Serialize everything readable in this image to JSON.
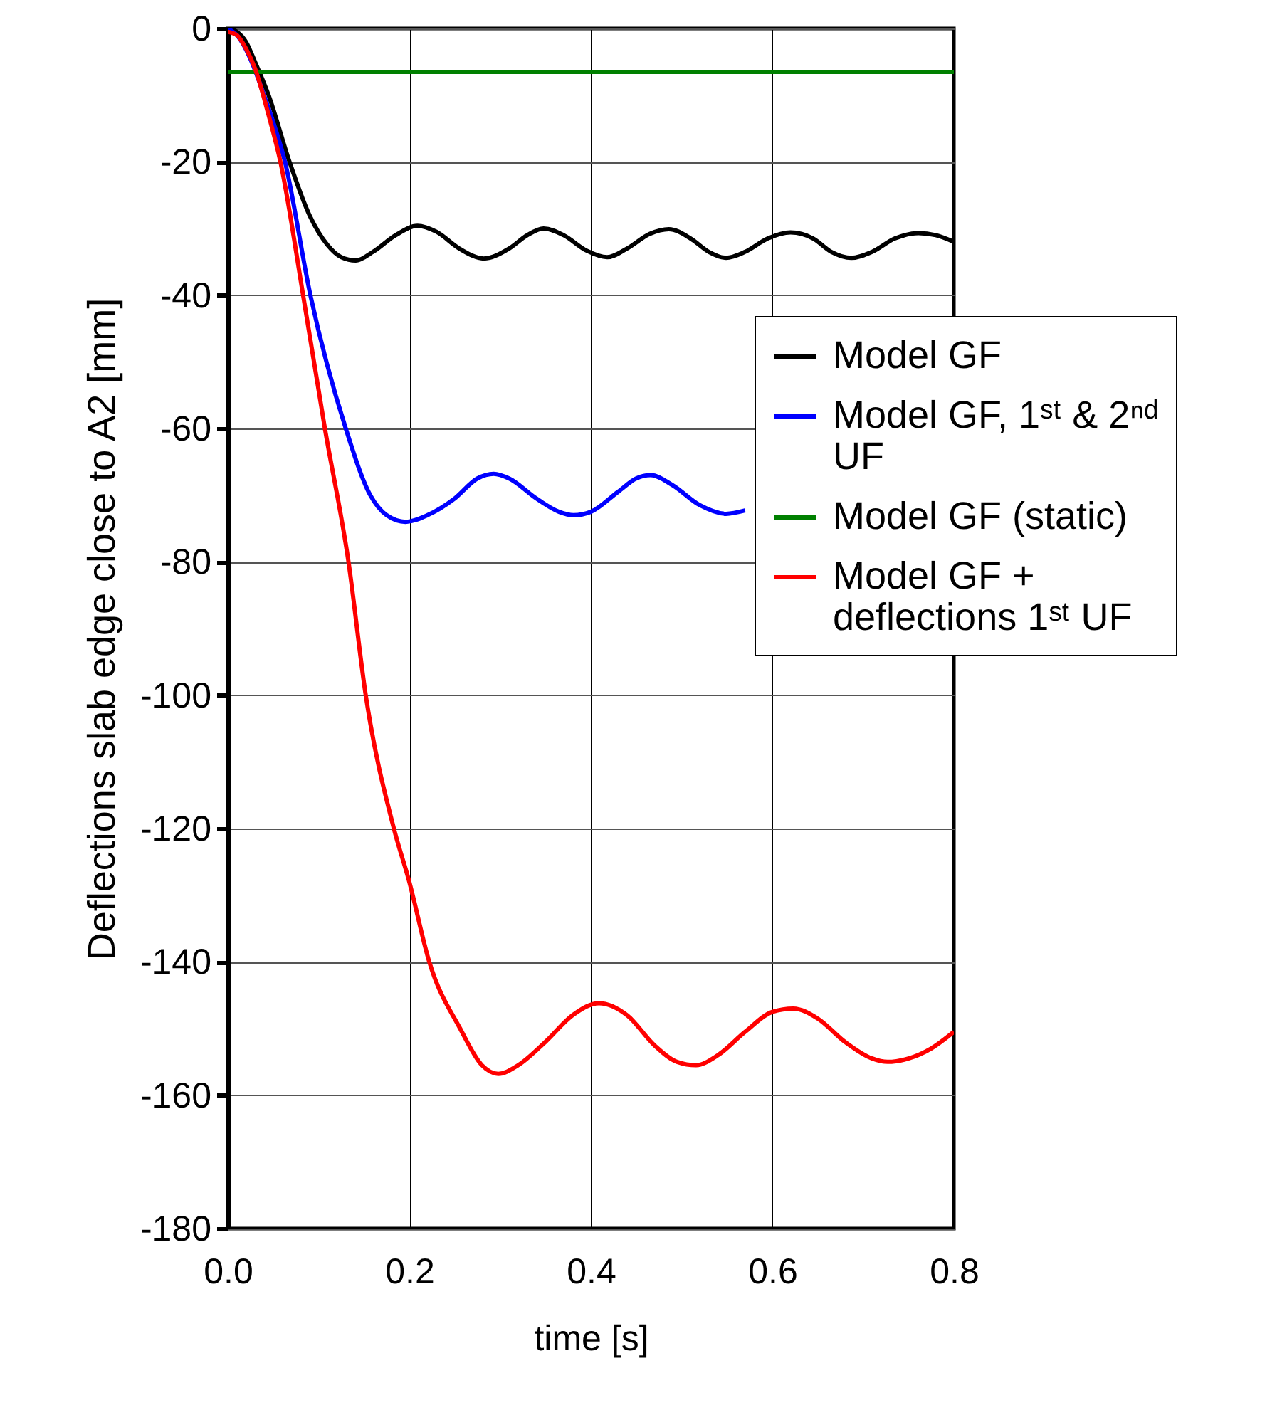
{
  "chart_data": {
    "type": "line",
    "xlabel": "time [s]",
    "ylabel": "Deflections slab edge close to A2    [mm]",
    "xlim": [
      0,
      0.8
    ],
    "xticks": [
      {
        "value": 0,
        "label": "0.0"
      },
      0.2,
      0.4,
      0.6,
      0.8
    ],
    "ylim": [
      -180,
      0
    ],
    "yticks": [
      -180,
      -160,
      -140,
      -120,
      -100,
      -80,
      -60,
      -40,
      -20,
      0
    ],
    "grid": true,
    "legend": "right",
    "series": [
      {
        "name": "Model GF",
        "color": "#000000",
        "x": [
          0,
          0.01,
          0.02,
          0.03,
          0.045,
          0.068,
          0.09,
          0.11,
          0.125,
          0.141,
          0.16,
          0.185,
          0.209,
          0.23,
          0.255,
          0.282,
          0.31,
          0.33,
          0.348,
          0.37,
          0.395,
          0.418,
          0.44,
          0.465,
          0.486,
          0.51,
          0.53,
          0.549,
          0.57,
          0.595,
          0.62,
          0.645,
          0.665,
          0.687,
          0.71,
          0.735,
          0.761,
          0.78,
          0.8
        ],
        "values": [
          0,
          -0.5,
          -2,
          -5,
          -10,
          -20,
          -28,
          -32.5,
          -34.3,
          -34.8,
          -33.5,
          -31,
          -29.6,
          -30.5,
          -33,
          -34.5,
          -33,
          -31,
          -30,
          -31,
          -33.3,
          -34.3,
          -33,
          -30.8,
          -30.1,
          -31.5,
          -33.5,
          -34.4,
          -33.5,
          -31.5,
          -30.6,
          -31.5,
          -33.5,
          -34.4,
          -33.5,
          -31.5,
          -30.7,
          -31,
          -32
        ]
      },
      {
        "name": "Model GF, 1ˢᵗ & 2ⁿᵈ UF",
        "color": "#0000ff",
        "x": [
          0,
          0.01,
          0.045,
          0.063,
          0.091,
          0.13,
          0.157,
          0.175,
          0.196,
          0.22,
          0.25,
          0.275,
          0.293,
          0.31,
          0.34,
          0.365,
          0.381,
          0.4,
          0.43,
          0.45,
          0.466,
          0.49,
          0.52,
          0.549,
          0.57
        ],
        "values": [
          0,
          -1,
          -12,
          -20,
          -40,
          -60,
          -70,
          -73,
          -74,
          -73,
          -70.5,
          -67.5,
          -66.8,
          -67.5,
          -70.5,
          -72.5,
          -73,
          -72.5,
          -69.5,
          -67.5,
          -67,
          -68.5,
          -71.5,
          -72.8,
          -72.3
        ]
      },
      {
        "name": "Model GF (static)",
        "color": "#008000",
        "x": [
          0,
          0.8
        ],
        "values": [
          -6.5,
          -6.5
        ]
      },
      {
        "name": "Model GF + deflections 1ˢᵗ UF",
        "color": "#ff0000",
        "x": [
          0,
          0.01,
          0.02,
          0.03,
          0.045,
          0.058,
          0.083,
          0.107,
          0.133,
          0.152,
          0.183,
          0.2,
          0.222,
          0.256,
          0.28,
          0.298,
          0.32,
          0.35,
          0.38,
          0.409,
          0.44,
          0.47,
          0.495,
          0.516,
          0.54,
          0.57,
          0.6,
          0.623,
          0.65,
          0.68,
          0.71,
          0.727,
          0.75,
          0.775,
          0.8
        ],
        "values": [
          -0.5,
          -1,
          -3,
          -6,
          -13,
          -20,
          -40,
          -60,
          -80,
          -100,
          -120,
          -128,
          -140,
          -150,
          -155.5,
          -156.8,
          -155.5,
          -152,
          -148,
          -146.2,
          -148,
          -152.5,
          -155,
          -155.5,
          -154,
          -150.5,
          -147.5,
          -147,
          -148.5,
          -152,
          -154.5,
          -155,
          -154.5,
          -153,
          -150.5
        ]
      }
    ]
  }
}
